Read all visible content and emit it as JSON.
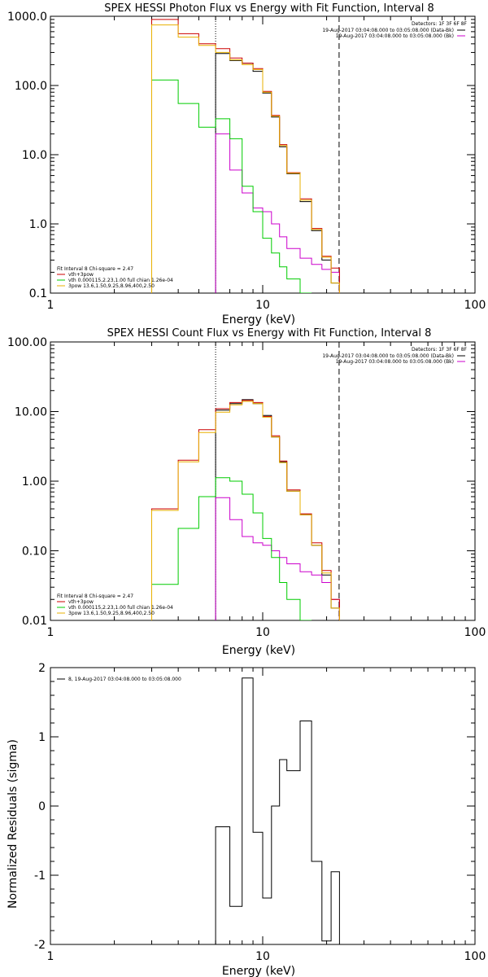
{
  "chart_data": [
    {
      "type": "line",
      "step": true,
      "title": "SPEX HESSI Photon Flux vs Energy with Fit Function, Interval 8",
      "xlabel": "Energy (keV)",
      "ylabel": "",
      "xscale": "log",
      "yscale": "log",
      "xlim": [
        1,
        100
      ],
      "ylim": [
        0.1,
        1000
      ],
      "x_ticks": [
        "1",
        "10",
        "100"
      ],
      "y_ticks": [
        "0.1",
        "1.0",
        "10.0",
        "100.0",
        "1000.0"
      ],
      "vlines": [
        {
          "x": 6.0,
          "style": "dotted"
        },
        {
          "x": 22.9,
          "style": "dashed"
        }
      ],
      "legend_topright": {
        "title": "Detectors: 1F 3F 6F 8F",
        "entries": [
          {
            "label": "19-Aug-2017 03:04:08.000 to 03:05:08.000 (Data-Bk)",
            "color": "#000000"
          },
          {
            "label": "19-Aug-2017 03:04:08.000 to 03:05:08.000 (Bk)",
            "color": "#cc00cc"
          }
        ]
      },
      "legend_bottomleft": {
        "title": "Fit Interval 8   Chi-square = 2.47",
        "entries": [
          {
            "label": "vth+3pow",
            "color": "#cc0000"
          },
          {
            "label": "vth 0.000115,2.23,1.00  full chian 1.26e-04",
            "color": "#00cc00"
          },
          {
            "label": "3pow 13.6,1.50,9.25,8.96,400,2.50",
            "color": "#e8b000"
          }
        ]
      },
      "bin_edges": [
        3,
        4,
        5,
        6,
        7,
        8,
        9,
        10,
        11,
        12,
        13,
        15,
        17,
        19,
        21,
        23
      ],
      "series": [
        {
          "name": "Data-Bk",
          "color": "#000000",
          "values": [
            null,
            null,
            null,
            290,
            230,
            210,
            160,
            78,
            35,
            13,
            5.3,
            2.1,
            0.8,
            0.3,
            0.14
          ]
        },
        {
          "name": "Bk",
          "color": "#cc00cc",
          "values": [
            null,
            null,
            null,
            20,
            6,
            2.8,
            1.7,
            1.5,
            1.0,
            0.65,
            0.44,
            0.32,
            0.26,
            0.22,
            0.2
          ]
        },
        {
          "name": "vth+3pow",
          "color": "#cc0000",
          "values": [
            900,
            560,
            400,
            340,
            250,
            210,
            175,
            82,
            37,
            14,
            5.5,
            2.3,
            0.86,
            0.34,
            0.23
          ]
        },
        {
          "name": "vth",
          "color": "#00cc00",
          "values": [
            120,
            55,
            25,
            33,
            17,
            3.5,
            1.5,
            0.62,
            0.38,
            0.24,
            0.16,
            0.1,
            null,
            null,
            null
          ]
        },
        {
          "name": "3pow",
          "color": "#e8b000",
          "values": [
            750,
            500,
            380,
            300,
            235,
            200,
            170,
            80,
            36,
            13.5,
            5.4,
            2.2,
            0.83,
            0.33,
            0.14
          ]
        }
      ]
    },
    {
      "type": "line",
      "step": true,
      "title": "SPEX HESSI Count Flux vs Energy with Fit Function, Interval 8",
      "xlabel": "Energy (keV)",
      "ylabel": "",
      "xscale": "log",
      "yscale": "log",
      "xlim": [
        1,
        100
      ],
      "ylim": [
        0.01,
        100
      ],
      "x_ticks": [
        "1",
        "10",
        "100"
      ],
      "y_ticks": [
        "0.01",
        "0.10",
        "1.00",
        "10.00",
        "100.00"
      ],
      "vlines": [
        {
          "x": 6.0,
          "style": "dotted"
        },
        {
          "x": 22.9,
          "style": "dashed"
        }
      ],
      "legend_topright": {
        "title": "Detectors: 1F 3F 6F 8F",
        "entries": [
          {
            "label": "19-Aug-2017 03:04:08.000 to 03:05:08.000 (Data-Bk)",
            "color": "#000000"
          },
          {
            "label": "19-Aug-2017 03:04:08.000 to 03:05:08.000 (Bk)",
            "color": "#cc00cc"
          }
        ]
      },
      "legend_bottomleft": {
        "title": "Fit Interval 8   Chi-square = 2.47",
        "entries": [
          {
            "label": "vth+3pow",
            "color": "#cc0000"
          },
          {
            "label": "vth 0.000115,2.23,1.00  full chian 1.26e-04",
            "color": "#00cc00"
          },
          {
            "label": "3pow 13.6,1.50,9.25,8.96,400,2.50",
            "color": "#e8b000"
          }
        ]
      },
      "bin_edges": [
        3,
        4,
        5,
        6,
        7,
        8,
        9,
        10,
        11,
        12,
        13,
        15,
        17,
        19,
        21,
        23
      ],
      "series": [
        {
          "name": "Data-Bk",
          "color": "#000000",
          "values": [
            null,
            null,
            null,
            10.5,
            13,
            14.8,
            13,
            8.8,
            4.3,
            1.9,
            0.72,
            0.33,
            0.12,
            0.045,
            0.015
          ]
        },
        {
          "name": "Bk",
          "color": "#cc00cc",
          "values": [
            null,
            null,
            null,
            0.58,
            0.28,
            0.16,
            0.13,
            0.12,
            0.1,
            0.08,
            0.065,
            0.05,
            0.045,
            0.035,
            0.02
          ]
        },
        {
          "name": "vth+3pow",
          "color": "#cc0000",
          "values": [
            0.4,
            2.0,
            5.5,
            11,
            13.5,
            14.5,
            13.5,
            8.5,
            4.5,
            1.95,
            0.75,
            0.34,
            0.13,
            0.052,
            0.02
          ]
        },
        {
          "name": "vth",
          "color": "#00cc00",
          "values": [
            0.033,
            0.21,
            0.6,
            1.12,
            1.0,
            0.65,
            0.35,
            0.15,
            0.08,
            0.035,
            0.02,
            0.01,
            null,
            null,
            null
          ]
        },
        {
          "name": "3pow",
          "color": "#e8b000",
          "values": [
            0.38,
            1.9,
            5.0,
            9.8,
            12.5,
            14.0,
            13.0,
            8.3,
            4.3,
            1.85,
            0.72,
            0.33,
            0.12,
            0.048,
            0.015
          ]
        }
      ]
    },
    {
      "type": "line",
      "step": true,
      "title": "",
      "xlabel": "Energy (keV)",
      "ylabel": "Normalized Residuals (sigma)",
      "xscale": "log",
      "yscale": "linear",
      "xlim": [
        1,
        100
      ],
      "ylim": [
        -2,
        2
      ],
      "x_ticks": [
        "1",
        "10",
        "100"
      ],
      "y_ticks": [
        "-2",
        "-1",
        "0",
        "1",
        "2"
      ],
      "legend": {
        "label": "8, 19-Aug-2017 03:04:08.000 to 03:05:08.000",
        "color": "#000000"
      },
      "bin_edges": [
        6,
        7,
        8,
        9,
        10,
        11,
        12,
        13,
        15,
        17,
        19,
        21,
        23
      ],
      "series": [
        {
          "name": "",
          "color": "#000000",
          "values": [
            -0.3,
            -1.45,
            1.85,
            -0.38,
            -1.33,
            0.0,
            0.67,
            0.51,
            1.23,
            -0.8,
            -1.95,
            -0.95
          ]
        }
      ]
    }
  ]
}
